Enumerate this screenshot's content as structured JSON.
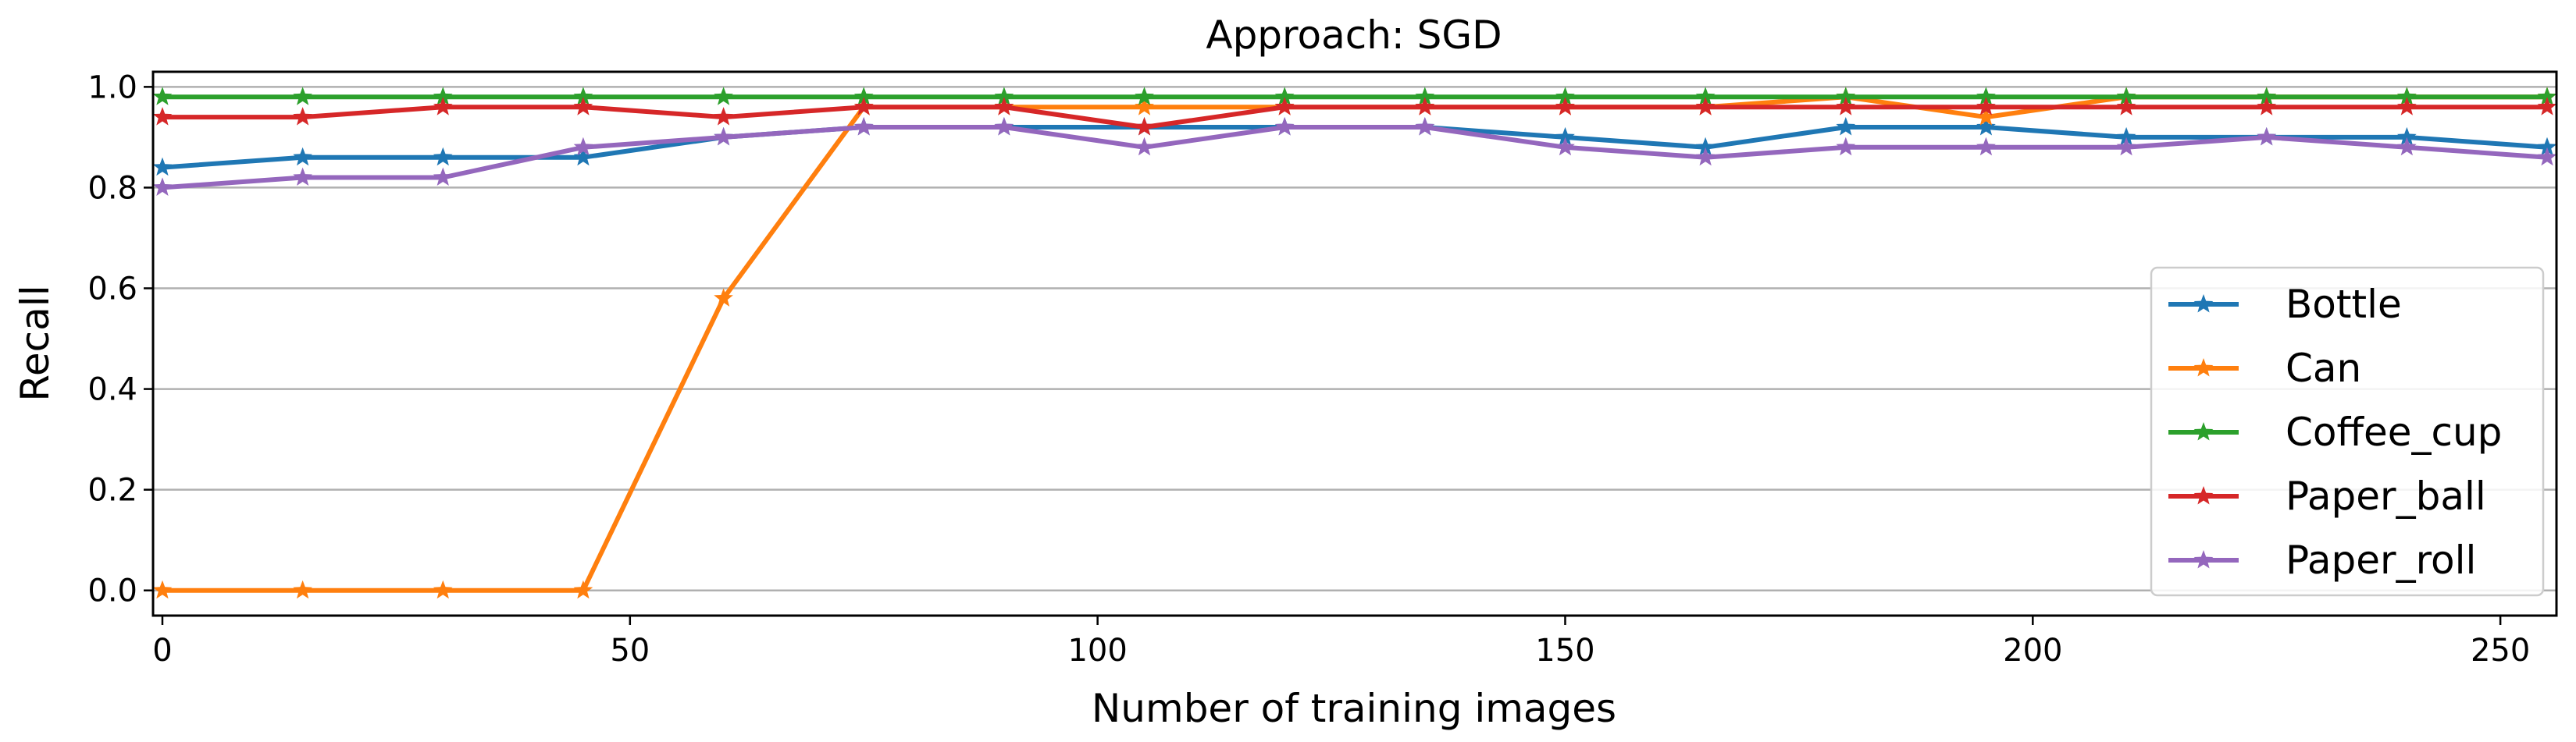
{
  "chart_data": {
    "type": "line",
    "title": "Approach: SGD",
    "xlabel": "Number of training images",
    "ylabel": "Recall",
    "xlim": [
      -1,
      256
    ],
    "ylim": [
      -0.05,
      1.03
    ],
    "x_ticks": [
      0,
      50,
      100,
      150,
      200,
      250
    ],
    "x_tick_labels": [
      "0",
      "50",
      "100",
      "150",
      "200",
      "250"
    ],
    "y_ticks": [
      0.0,
      0.2,
      0.4,
      0.6,
      0.8,
      1.0
    ],
    "y_tick_labels": [
      "0.0",
      "0.2",
      "0.4",
      "0.6",
      "0.8",
      "1.0"
    ],
    "grid": "horizontal",
    "legend_position": "center-right",
    "marker": "star",
    "x": [
      0,
      15,
      30,
      45,
      60,
      75,
      90,
      105,
      120,
      135,
      150,
      165,
      180,
      195,
      210,
      225,
      240,
      255
    ],
    "series": [
      {
        "name": "Bottle",
        "color": "#1f77b4",
        "values": [
          0.84,
          0.86,
          0.86,
          0.86,
          0.9,
          0.92,
          0.92,
          0.92,
          0.92,
          0.92,
          0.9,
          0.88,
          0.92,
          0.92,
          0.9,
          0.9,
          0.9,
          0.88
        ]
      },
      {
        "name": "Can",
        "color": "#ff7f0e",
        "values": [
          0.0,
          0.0,
          0.0,
          0.0,
          0.58,
          0.96,
          0.96,
          0.96,
          0.96,
          0.96,
          0.96,
          0.96,
          0.98,
          0.94,
          0.98,
          0.98,
          0.98,
          0.98
        ]
      },
      {
        "name": "Coffee_cup",
        "color": "#2ca02c",
        "values": [
          0.98,
          0.98,
          0.98,
          0.98,
          0.98,
          0.98,
          0.98,
          0.98,
          0.98,
          0.98,
          0.98,
          0.98,
          0.98,
          0.98,
          0.98,
          0.98,
          0.98,
          0.98
        ]
      },
      {
        "name": "Paper_ball",
        "color": "#d62728",
        "values": [
          0.94,
          0.94,
          0.96,
          0.96,
          0.94,
          0.96,
          0.96,
          0.92,
          0.96,
          0.96,
          0.96,
          0.96,
          0.96,
          0.96,
          0.96,
          0.96,
          0.96,
          0.96
        ]
      },
      {
        "name": "Paper_roll",
        "color": "#9467bd",
        "values": [
          0.8,
          0.82,
          0.82,
          0.88,
          0.9,
          0.92,
          0.92,
          0.88,
          0.92,
          0.92,
          0.88,
          0.86,
          0.88,
          0.88,
          0.88,
          0.9,
          0.88,
          0.86
        ]
      }
    ]
  }
}
